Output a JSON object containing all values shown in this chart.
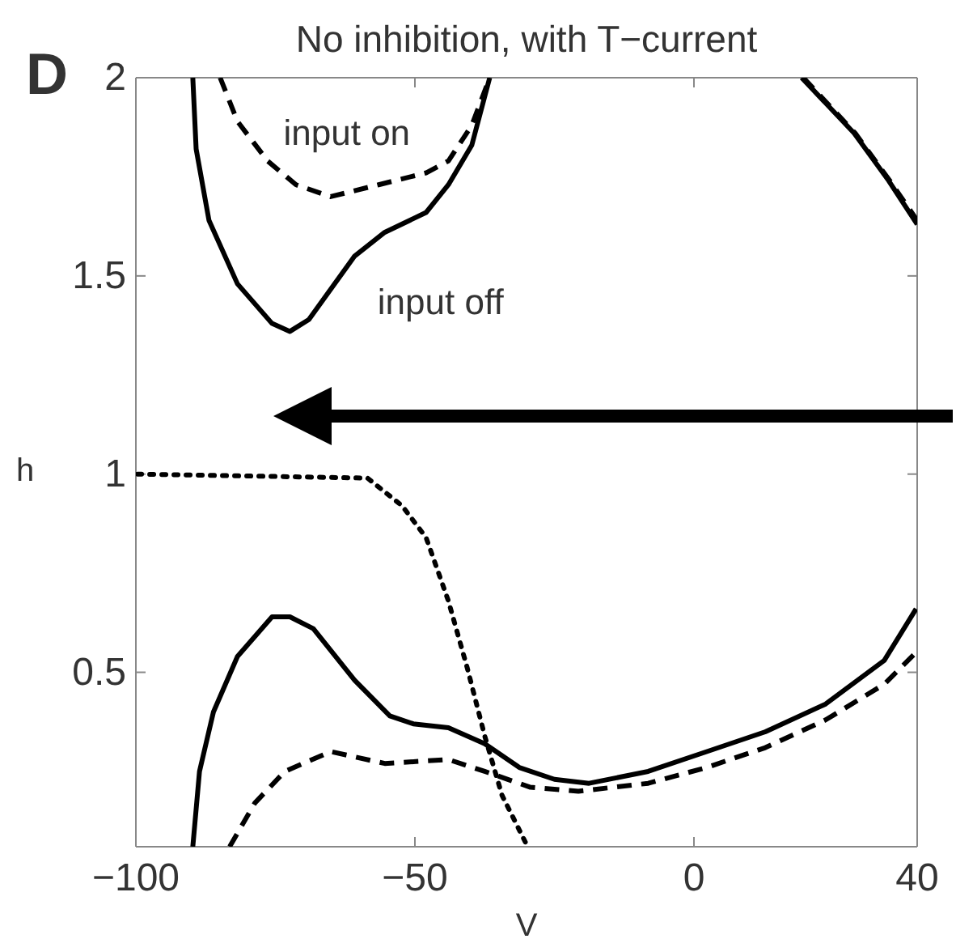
{
  "chart_data": {
    "type": "line",
    "title": "No inhibition, with T−current",
    "xlabel": "V",
    "ylabel": "h",
    "xlim": [
      -100,
      40
    ],
    "xticks": [
      -100,
      -50,
      0,
      40
    ],
    "ylim": [
      0.06,
      2
    ],
    "yticks": [
      0.5,
      1,
      1.5,
      2
    ],
    "annotations": [
      "D",
      "input on",
      "input off"
    ],
    "series": [
      {
        "color": "#000000",
        "line_style": "solid",
        "x": [
          -89.8,
          -89.2,
          -86.9,
          -81.8,
          -75.6,
          -72.4,
          -69.0,
          -60.8,
          -55.4,
          -48.0,
          -44.0,
          -39.8,
          -36.6
        ],
        "values": [
          2.0,
          1.82,
          1.64,
          1.48,
          1.38,
          1.36,
          1.39,
          1.55,
          1.61,
          1.66,
          1.73,
          1.83,
          2.0
        ]
      },
      {
        "color": "#000000",
        "line_style": "dashed",
        "x": [
          -84.9,
          -81.8,
          -76.4,
          -71.3,
          -65.1,
          -56.5,
          -48.0,
          -44.0,
          -39.8,
          -36.6
        ],
        "values": [
          2.0,
          1.89,
          1.79,
          1.73,
          1.7,
          1.73,
          1.76,
          1.79,
          1.88,
          2.0
        ]
      },
      {
        "color": "#000000",
        "line_style": "solid",
        "x": [
          19.3,
          28.7,
          34.9,
          40
        ],
        "values": [
          2.0,
          1.86,
          1.74,
          1.63
        ]
      },
      {
        "color": "#000000",
        "line_style": "dashed",
        "x": [
          19.6,
          28.9,
          35.1,
          40
        ],
        "values": [
          2.0,
          1.86,
          1.74,
          1.64
        ]
      },
      {
        "color": "#000000",
        "line_style": "solid",
        "x": [
          -89.8,
          -88.6,
          -86.1,
          -81.8,
          -75.6,
          -72.4,
          -68.2,
          -60.8,
          -54.5,
          -50.3,
          -44.0,
          -37.5,
          -31.3,
          -25.0,
          -18.8,
          -8.2,
          2.3,
          12.8,
          23.6,
          34.1,
          39.8
        ],
        "values": [
          0.06,
          0.25,
          0.4,
          0.54,
          0.64,
          0.64,
          0.61,
          0.48,
          0.39,
          0.37,
          0.36,
          0.32,
          0.26,
          0.23,
          0.22,
          0.25,
          0.3,
          0.35,
          0.42,
          0.53,
          0.66
        ]
      },
      {
        "color": "#000000",
        "line_style": "dashed",
        "x": [
          -83.2,
          -78.7,
          -73.3,
          -65.1,
          -55.4,
          -44.0,
          -37.5,
          -29.3,
          -20.7,
          -8.2,
          2.3,
          12.8,
          23.6,
          34.1,
          39.8
        ],
        "values": [
          0.06,
          0.17,
          0.25,
          0.3,
          0.27,
          0.28,
          0.25,
          0.21,
          0.2,
          0.22,
          0.26,
          0.31,
          0.38,
          0.47,
          0.55
        ]
      },
      {
        "color": "#000000",
        "line_style": "dotted",
        "x": [
          -99.7,
          -58.5,
          -52.3,
          -48.0,
          -44.0,
          -40.6,
          -37.5,
          -34.4,
          -29.8
        ],
        "values": [
          1.0,
          0.99,
          0.92,
          0.84,
          0.68,
          0.51,
          0.34,
          0.19,
          0.06
        ]
      }
    ]
  }
}
